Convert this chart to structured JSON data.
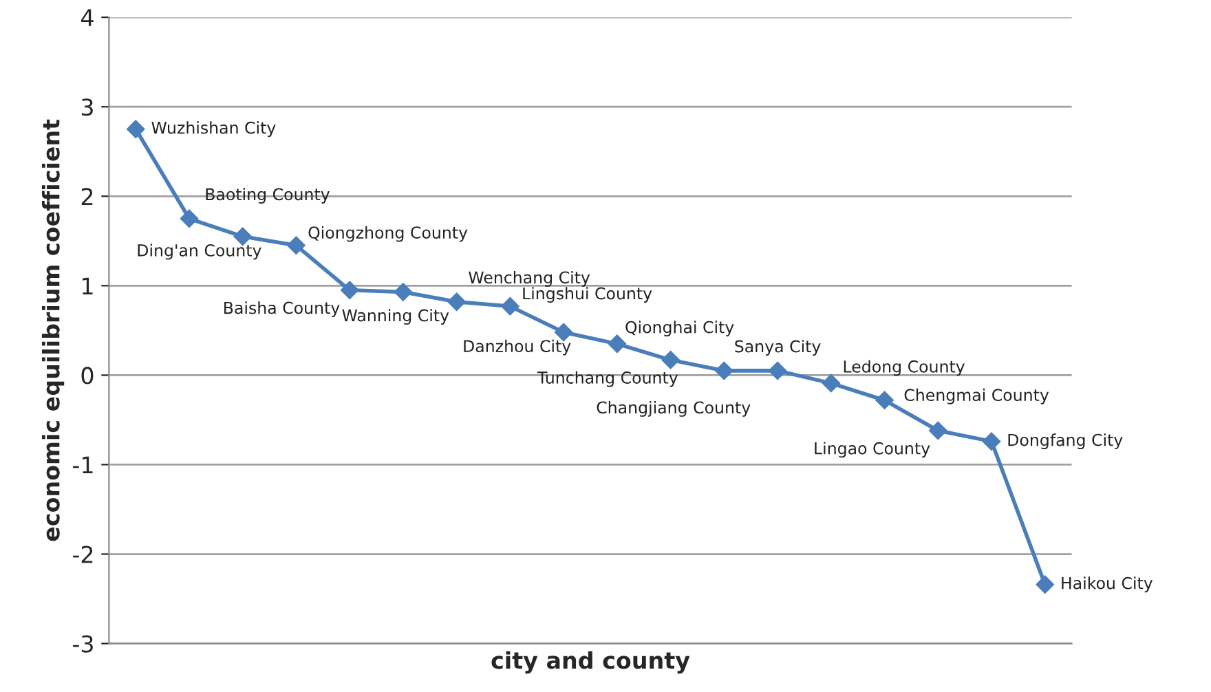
{
  "chart_data": {
    "type": "line",
    "xlabel": "city and county",
    "ylabel": "economic equilibrium coefficient",
    "categories": [
      null,
      null,
      null,
      null,
      null,
      null,
      null,
      null,
      null,
      null,
      null,
      null,
      null,
      null,
      null,
      null,
      null,
      null
    ],
    "series": [
      {
        "color": "#4a7ebb",
        "values": [
          2.75,
          1.75,
          1.55,
          1.45,
          0.95,
          0.93,
          0.82,
          0.77,
          0.48,
          0.35,
          0.17,
          0.05,
          0.05,
          -0.09,
          -0.28,
          -0.62,
          -0.74,
          -2.34
        ]
      }
    ],
    "annotations": [
      "Wuzhishan City",
      "Baoting County",
      "Ding'an County",
      "Qiongzhong County",
      "Baisha County",
      "Wanning City",
      "Wenchang City",
      "Lingshui County",
      "Danzhou City",
      "Qionghai City",
      "Tunchang County",
      "Changjiang County",
      "Sanya City",
      "Ledong County",
      "Chengmai County",
      "Lingao County",
      "Dongfang City",
      "Haikou City"
    ],
    "ylim": [
      -3,
      4
    ],
    "yticks": [
      -3,
      -2,
      -1,
      0,
      1,
      2,
      3,
      4
    ],
    "grid": "y",
    "marker": "diamond",
    "line_style": "solid",
    "tick_labels": "y"
  }
}
